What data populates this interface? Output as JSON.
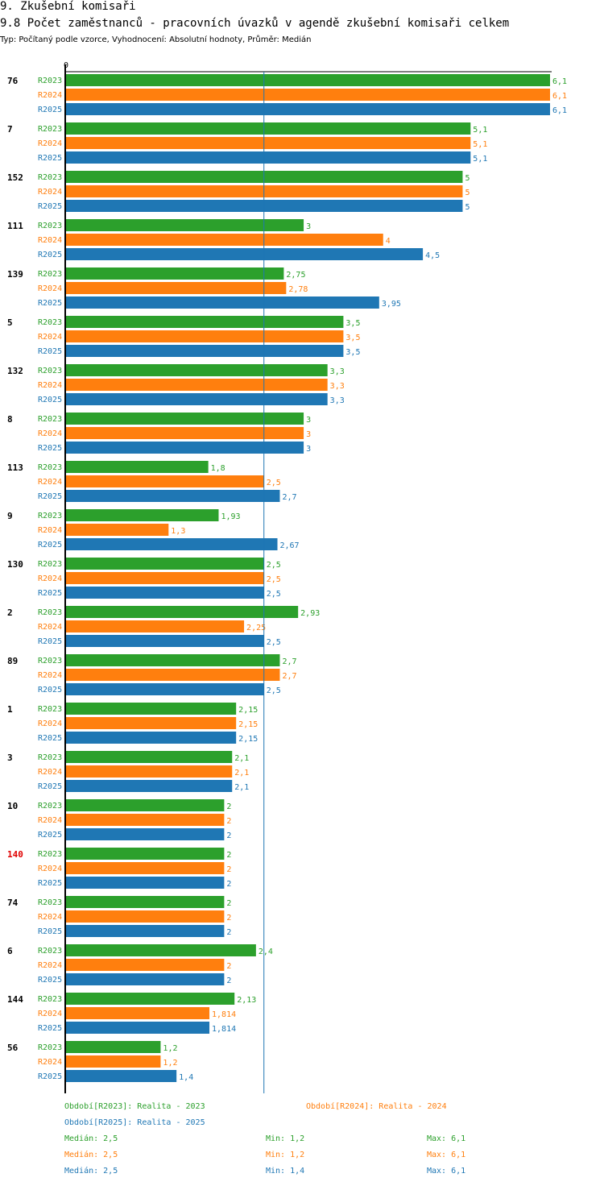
{
  "section_title": "9. Zkušební komisaři",
  "chart_title": "9.8 Počet zaměstnanců - pracovních úvazků v agendě zkušební komisaři celkem",
  "subtitle": "Typ: Počítaný podle vzorce, Vyhodnocení: Absolutní hodnoty, Průměr: Medián",
  "colors": {
    "R2023": "#2ca02c",
    "R2024": "#ff7f0e",
    "R2025": "#1f77b4",
    "highlight": "#e00000",
    "median_line": "#1f77b4"
  },
  "chart_data": {
    "type": "bar",
    "orientation": "horizontal",
    "xlim": [
      0,
      6.1
    ],
    "x_tick_labels": [
      "0"
    ],
    "median_reference": 2.5,
    "highlighted_category": "140",
    "categories": [
      "76",
      "7",
      "152",
      "111",
      "139",
      "5",
      "132",
      "8",
      "113",
      "9",
      "130",
      "2",
      "89",
      "1",
      "3",
      "10",
      "140",
      "74",
      "6",
      "144",
      "56"
    ],
    "series": [
      {
        "name": "R2023",
        "values": [
          6.1,
          5.1,
          5,
          3,
          2.75,
          3.5,
          3.3,
          3,
          1.8,
          1.93,
          2.5,
          2.93,
          2.7,
          2.15,
          2.1,
          2,
          2,
          2,
          2.4,
          2.13,
          1.2
        ],
        "labels": [
          "6,1",
          "5,1",
          "5",
          "3",
          "2,75",
          "3,5",
          "3,3",
          "3",
          "1,8",
          "1,93",
          "2,5",
          "2,93",
          "2,7",
          "2,15",
          "2,1",
          "2",
          "2",
          "2",
          "2,4",
          "2,13",
          "1,2"
        ]
      },
      {
        "name": "R2024",
        "values": [
          6.1,
          5.1,
          5,
          4,
          2.78,
          3.5,
          3.3,
          3,
          2.5,
          1.3,
          2.5,
          2.25,
          2.7,
          2.15,
          2.1,
          2,
          2,
          2,
          2,
          1.814,
          1.2
        ],
        "labels": [
          "6,1",
          "5,1",
          "5",
          "4",
          "2,78",
          "3,5",
          "3,3",
          "3",
          "2,5",
          "1,3",
          "2,5",
          "2,25",
          "2,7",
          "2,15",
          "2,1",
          "2",
          "2",
          "2",
          "2",
          "1,814",
          "1,2"
        ]
      },
      {
        "name": "R2025",
        "values": [
          6.1,
          5.1,
          5,
          4.5,
          3.95,
          3.5,
          3.3,
          3,
          2.7,
          2.67,
          2.5,
          2.5,
          2.5,
          2.15,
          2.1,
          2,
          2,
          2,
          2,
          1.814,
          1.4
        ],
        "labels": [
          "6,1",
          "5,1",
          "5",
          "4,5",
          "3,95",
          "3,5",
          "3,3",
          "3",
          "2,7",
          "2,67",
          "2,5",
          "2,5",
          "2,5",
          "2,15",
          "2,1",
          "2",
          "2",
          "2",
          "2",
          "1,814",
          "1,4"
        ]
      }
    ]
  },
  "legend": {
    "r2023": "Období[R2023]: Realita - 2023",
    "r2024": "Období[R2024]: Realita - 2024",
    "r2025": "Období[R2025]: Realita - 2025"
  },
  "stats": {
    "r2023": {
      "median": "Medián: 2,5",
      "min": "Min: 1,2",
      "max": "Max: 6,1"
    },
    "r2024": {
      "median": "Medián: 2,5",
      "min": "Min: 1,2",
      "max": "Max: 6,1"
    },
    "r2025": {
      "median": "Medián: 2,5",
      "min": "Min: 1,4",
      "max": "Max: 6,1"
    }
  }
}
